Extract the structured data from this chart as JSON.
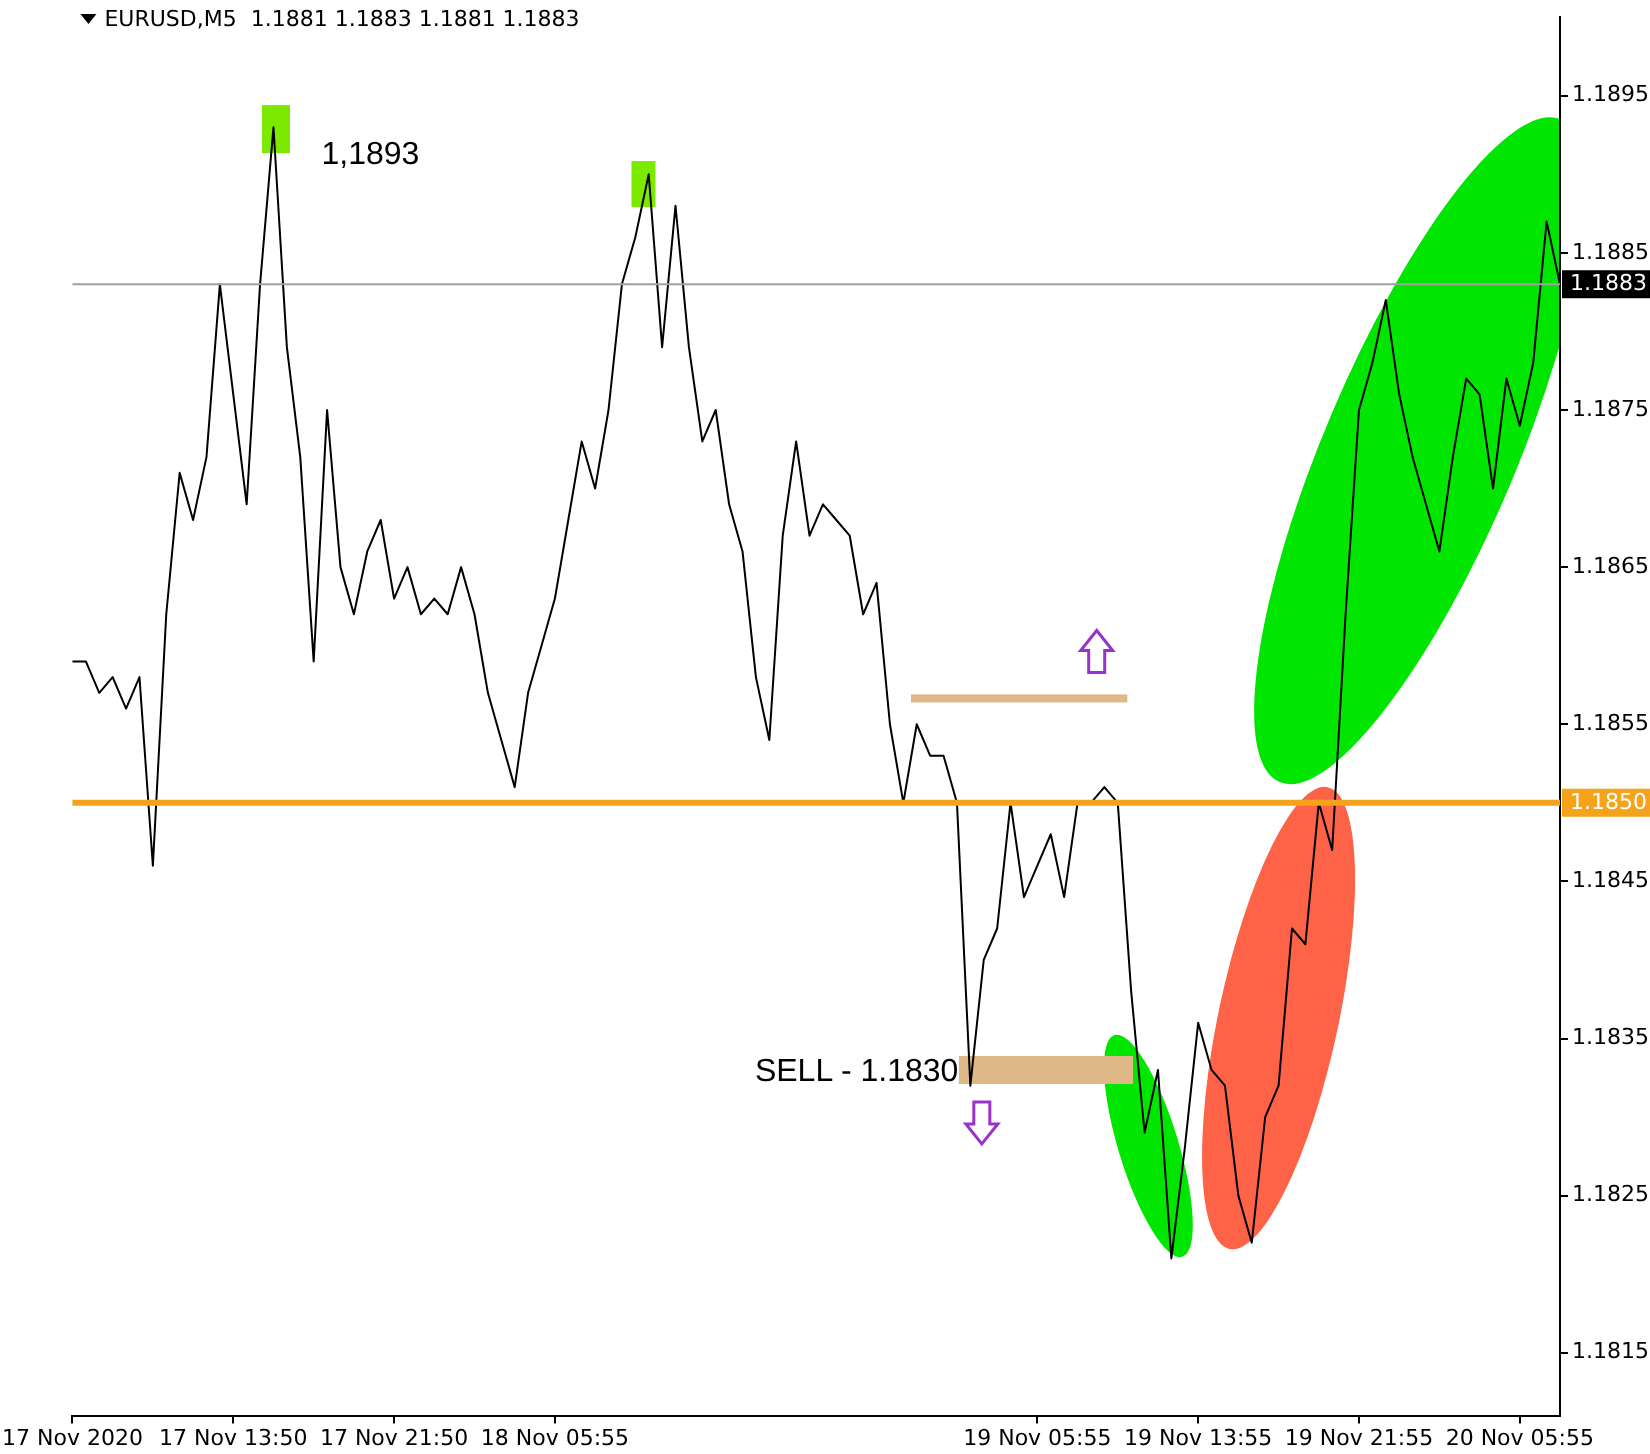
{
  "chart_data": {
    "type": "line",
    "title": "EURUSD,M5  1.1881 1.1883 1.1881 1.1883",
    "categories": [
      "17 Nov 2020",
      null,
      null,
      null,
      null,
      null,
      null,
      null,
      null,
      null,
      null,
      null,
      "17 Nov 13:50",
      null,
      null,
      null,
      null,
      null,
      null,
      null,
      null,
      null,
      null,
      null,
      "17 Nov 21:50",
      null,
      null,
      null,
      null,
      null,
      null,
      null,
      null,
      null,
      null,
      null,
      "18 Nov 05:55",
      null,
      null,
      null,
      null,
      null,
      null,
      null,
      null,
      null,
      null,
      null,
      null,
      null,
      null,
      null,
      null,
      null,
      null,
      null,
      null,
      null,
      null,
      null,
      null,
      null,
      null,
      null,
      null,
      null,
      null,
      null,
      null,
      null,
      null,
      null,
      "19 Nov 05:55",
      null,
      null,
      null,
      null,
      null,
      null,
      null,
      null,
      null,
      null,
      null,
      "19 Nov 13:55",
      null,
      null,
      null,
      null,
      null,
      null,
      null,
      null,
      null,
      null,
      null,
      "19 Nov 21:55",
      null,
      null,
      null,
      null,
      null,
      null,
      null,
      null,
      null,
      null,
      null,
      "20 Nov 05:55",
      null,
      null,
      null
    ],
    "series": [
      {
        "color": "#000000",
        "values": [
          1.1859,
          1.1859,
          1.1857,
          1.1858,
          1.1856,
          1.1858,
          1.1846,
          1.1862,
          1.1871,
          1.1868,
          1.1872,
          1.1883,
          1.1876,
          1.1869,
          1.1883,
          1.1893,
          1.1879,
          1.1872,
          1.1859,
          1.1875,
          1.1865,
          1.1862,
          1.1866,
          1.1868,
          1.1863,
          1.1865,
          1.1862,
          1.1863,
          1.1862,
          1.1865,
          1.1862,
          1.1857,
          1.1854,
          1.1851,
          1.1857,
          1.186,
          1.1863,
          1.1868,
          1.1873,
          1.187,
          1.1875,
          1.1883,
          1.1886,
          1.189,
          1.1879,
          1.1888,
          1.1879,
          1.1873,
          1.1875,
          1.1869,
          1.1866,
          1.1858,
          1.1854,
          1.1867,
          1.1873,
          1.1867,
          1.1869,
          1.1868,
          1.1867,
          1.1862,
          1.1864,
          1.1855,
          1.185,
          1.1855,
          1.1853,
          1.1853,
          1.185,
          1.1832,
          1.184,
          1.1842,
          1.185,
          1.1844,
          1.1846,
          1.1848,
          1.1844,
          1.185,
          1.185,
          1.1851,
          1.185,
          1.1838,
          1.1829,
          1.1833,
          1.1821,
          1.1828,
          1.1836,
          1.1833,
          1.1832,
          1.1825,
          1.1822,
          1.183,
          1.1832,
          1.1842,
          1.1841,
          1.185,
          1.1847,
          1.1862,
          1.1875,
          1.1878,
          1.1882,
          1.1876,
          1.1872,
          1.1869,
          1.1866,
          1.1872,
          1.1877,
          1.1876,
          1.187,
          1.1877,
          1.1874,
          1.1878,
          1.1887,
          1.1883
        ]
      }
    ],
    "ylim": [
      1.1811,
      1.19
    ],
    "yticks": [
      1.1815,
      1.1825,
      1.1835,
      1.1845,
      1.1855,
      1.1865,
      1.1875,
      1.1885,
      1.1895
    ],
    "ref_lines": [
      {
        "axis": "y",
        "value": 1.185,
        "label": "1.1850",
        "color": "#f5a31a"
      },
      {
        "axis": "y",
        "value": 1.1883,
        "label": "1.1883",
        "color": "#a0a0a0"
      }
    ],
    "annotations": [
      "1,1893",
      "SELL - 1.1830"
    ],
    "marker": "none",
    "grid": false,
    "legend": false
  }
}
